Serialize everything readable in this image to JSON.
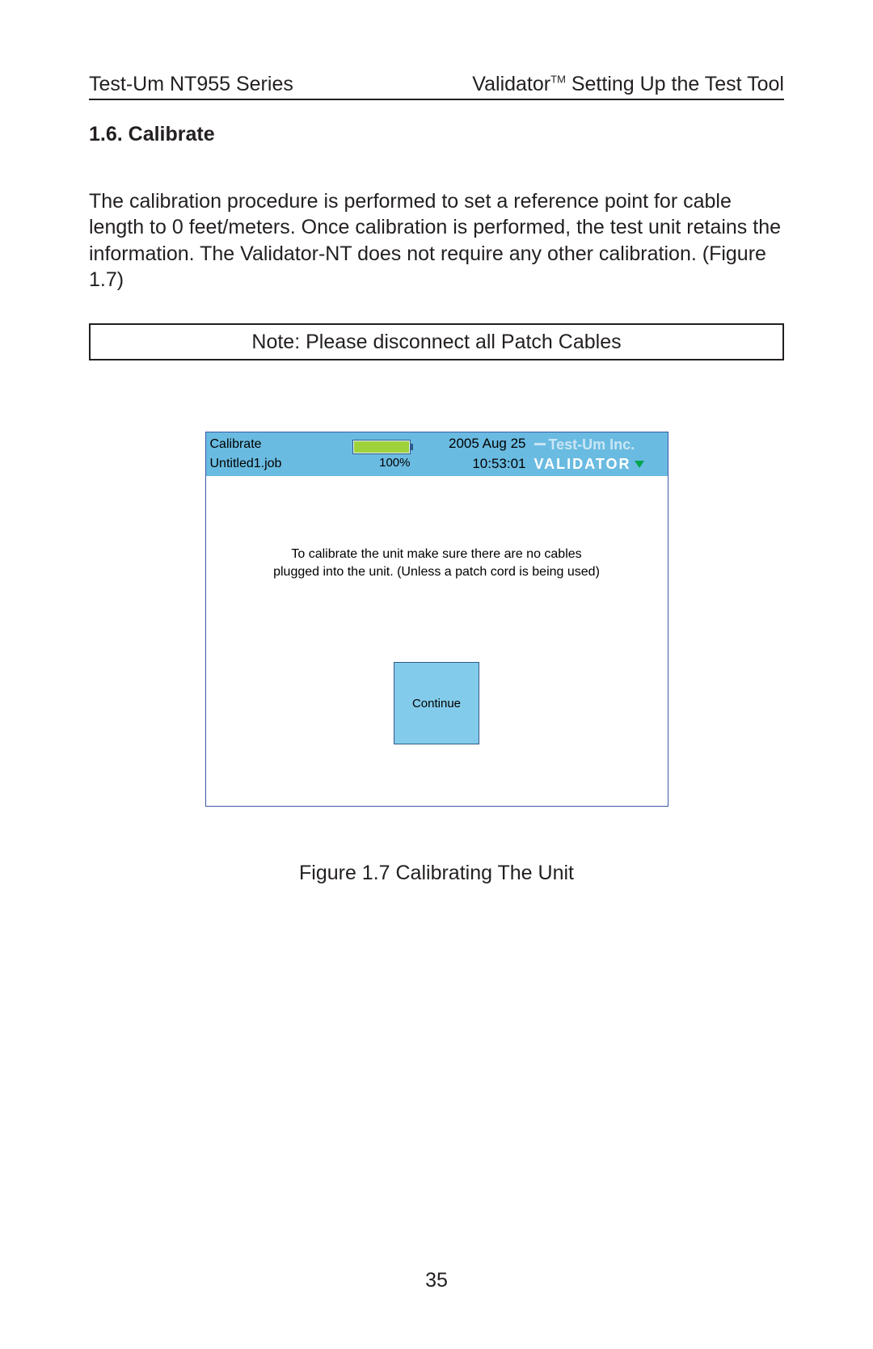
{
  "header": {
    "left": "Test-Um NT955 Series",
    "right_pre": "Validator",
    "right_sup": "TM",
    "right_post": " Setting Up the Test Tool"
  },
  "section": {
    "heading": "1.6. Calibrate",
    "paragraph": "The calibration procedure is performed to set a reference point for cable length to 0 feet/meters.  Once calibration is performed, the test unit retains the information. The Validator-NT does not require any other calibration. (Figure 1.7)"
  },
  "note_box": "Note:  Please disconnect all Patch Cables",
  "device": {
    "header": {
      "screen_title": "Calibrate",
      "job_file": "Untitled1.job",
      "battery_pct_label": "100%",
      "battery_fill_pct": 98,
      "date": "2005 Aug 25",
      "time": "10:53:01",
      "brand_company": "Test-Um Inc.",
      "brand_product": "VALIDATOR"
    },
    "body": {
      "message": "To calibrate the unit make sure there are no cables plugged into the unit. (Unless a patch cord is being used)",
      "continue_label": "Continue"
    },
    "colors": {
      "header_bg": "#6abbe1",
      "button_bg": "#83cbeb",
      "button_border": "#2f5a8a",
      "battery_fill": "#9ed23a",
      "brand_product_color": "#ffffff",
      "brand_company_color": "#c9e6f5",
      "triangle_color": "#00a54f",
      "device_border": "#3a5aa6"
    }
  },
  "figure_caption": "Figure 1.7 Calibrating The Unit",
  "page_number": "35"
}
